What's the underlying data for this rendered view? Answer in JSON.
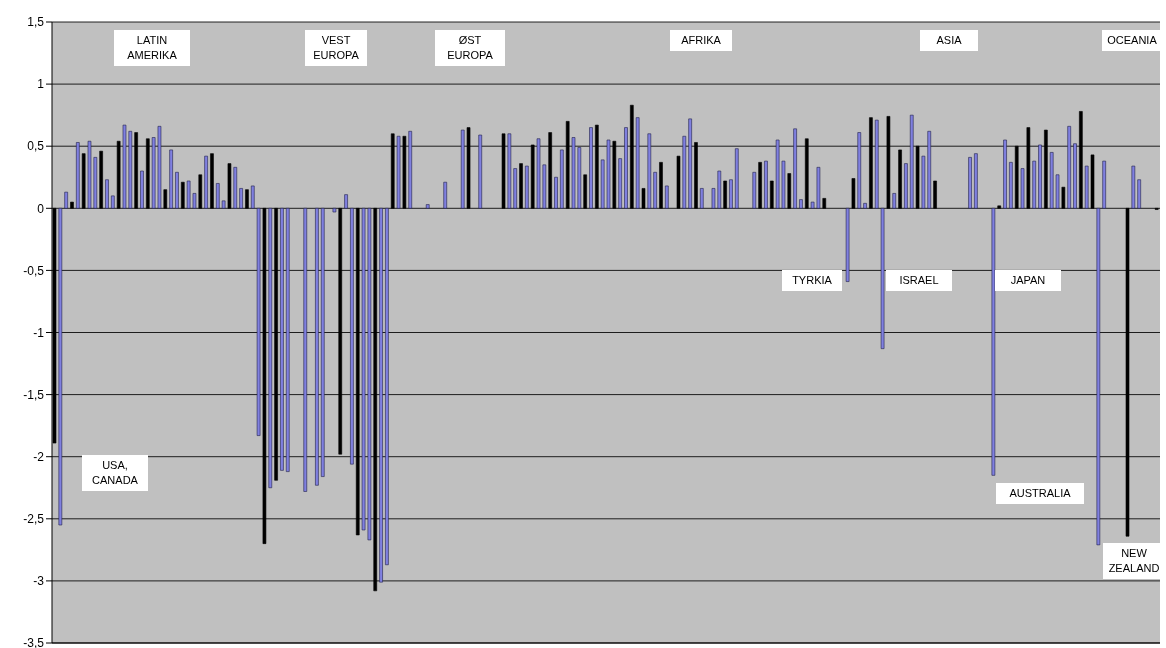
{
  "chart_data": {
    "type": "bar",
    "categories": [
      null,
      null,
      null,
      null,
      null,
      null,
      null,
      null,
      null,
      null,
      null,
      null,
      null,
      null,
      null,
      null,
      null,
      null,
      null,
      null,
      null,
      null,
      null,
      null,
      null,
      null,
      null,
      null,
      null,
      null,
      null,
      null,
      null,
      null,
      null,
      null,
      null,
      null,
      null,
      null,
      null,
      null,
      null,
      null,
      null,
      null,
      null,
      null,
      null,
      null,
      null,
      null,
      null,
      null,
      null,
      null,
      null,
      null,
      null,
      null,
      null,
      null,
      null,
      null,
      null,
      null,
      null,
      null,
      null,
      null,
      null,
      null,
      null,
      null,
      null,
      null,
      null,
      null,
      null,
      null,
      null,
      null,
      null,
      null,
      null,
      null,
      null,
      null,
      null,
      null,
      null,
      null,
      null,
      null,
      null,
      null,
      null,
      null,
      null,
      null,
      null,
      null,
      null,
      null,
      null,
      null,
      null,
      null,
      null,
      null,
      null,
      null,
      null,
      null,
      null,
      null,
      null,
      null,
      null,
      null,
      null,
      null,
      null,
      null,
      null,
      null,
      null,
      null,
      null,
      null,
      null,
      null,
      null,
      null,
      null,
      null,
      null,
      null,
      null,
      null,
      null,
      null,
      null,
      null,
      null,
      null,
      null,
      null,
      null,
      null,
      null,
      null,
      null,
      null,
      null,
      null,
      null,
      null,
      null,
      null,
      null,
      null,
      null,
      null,
      null,
      null,
      null,
      null,
      null,
      null,
      null,
      null,
      null,
      null,
      null,
      null,
      null,
      null,
      null,
      null,
      null,
      null,
      null,
      null,
      null,
      null,
      null,
      null,
      null,
      null
    ],
    "values": [
      -1.89,
      -2.55,
      0.13,
      0.05,
      0.53,
      0.44,
      0.54,
      0.41,
      0.46,
      0.23,
      0.1,
      0.54,
      0.67,
      0.62,
      0.61,
      0.3,
      0.56,
      0.57,
      0.66,
      0.15,
      0.47,
      0.29,
      0.21,
      0.22,
      0.12,
      0.27,
      0.42,
      0.44,
      0.2,
      0.06,
      0.36,
      0.33,
      0.16,
      0.15,
      0.18,
      -1.83,
      -2.7,
      -2.25,
      -2.19,
      -2.11,
      -2.12,
      null,
      null,
      -2.28,
      null,
      -2.23,
      -2.16,
      null,
      -0.03,
      -1.98,
      0.11,
      -2.06,
      -2.63,
      -2.59,
      -2.67,
      -3.08,
      -3.01,
      -2.87,
      0.6,
      0.58,
      0.58,
      0.62,
      null,
      null,
      0.03,
      null,
      null,
      0.21,
      null,
      null,
      0.63,
      0.65,
      null,
      0.59,
      null,
      null,
      null,
      0.6,
      0.6,
      0.32,
      0.36,
      0.34,
      0.51,
      0.56,
      0.35,
      0.61,
      0.25,
      0.47,
      0.7,
      0.57,
      0.49,
      0.27,
      0.65,
      0.67,
      0.39,
      0.55,
      0.54,
      0.4,
      0.65,
      0.83,
      0.73,
      0.16,
      0.6,
      0.29,
      0.37,
      0.18,
      null,
      0.42,
      0.58,
      0.72,
      0.53,
      0.16,
      null,
      0.16,
      0.3,
      0.22,
      0.23,
      0.48,
      null,
      null,
      0.29,
      0.37,
      0.38,
      0.22,
      0.55,
      0.38,
      0.28,
      0.64,
      0.07,
      0.56,
      0.05,
      0.33,
      0.08,
      null,
      null,
      null,
      -0.59,
      0.24,
      0.61,
      0.04,
      0.73,
      0.71,
      -1.13,
      0.74,
      0.12,
      0.47,
      0.36,
      0.75,
      0.5,
      0.42,
      0.62,
      0.22,
      null,
      null,
      null,
      null,
      null,
      0.41,
      0.44,
      null,
      null,
      -2.15,
      0.02,
      0.55,
      0.37,
      0.5,
      0.32,
      0.65,
      0.38,
      0.51,
      0.63,
      0.45,
      0.27,
      0.17,
      0.66,
      0.52,
      0.78,
      0.34,
      0.43,
      -2.71,
      0.38,
      null,
      null,
      null,
      -2.64,
      0.34,
      0.23,
      null,
      null,
      -0.01
    ],
    "colors": [
      "#000000",
      "#8080e0",
      "#8080e0",
      "#000000",
      "#8080e0",
      "#000000",
      "#8080e0",
      "#8080e0",
      "#000000",
      "#8080e0",
      "#8080e0",
      "#000000",
      "#8080e0",
      "#8080e0",
      "#000000",
      "#8080e0",
      "#000000",
      "#8080e0",
      "#8080e0",
      "#000000",
      "#8080e0",
      "#8080e0",
      "#000000",
      "#8080e0",
      "#8080e0",
      "#000000",
      "#8080e0",
      "#000000",
      "#8080e0",
      "#8080e0",
      "#000000",
      "#8080e0",
      "#8080e0",
      "#000000",
      "#8080e0",
      "#8080e0",
      "#000000",
      "#8080e0",
      "#000000",
      "#8080e0",
      "#8080e0",
      null,
      null,
      "#8080e0",
      null,
      "#8080e0",
      "#8080e0",
      null,
      "#8080e0",
      "#000000",
      "#8080e0",
      "#8080e0",
      "#000000",
      "#8080e0",
      "#8080e0",
      "#000000",
      "#8080e0",
      "#8080e0",
      "#000000",
      "#8080e0",
      "#000000",
      "#8080e0",
      null,
      null,
      "#8080e0",
      null,
      null,
      "#8080e0",
      null,
      null,
      "#8080e0",
      "#000000",
      null,
      "#8080e0",
      null,
      null,
      null,
      "#000000",
      "#8080e0",
      "#8080e0",
      "#000000",
      "#8080e0",
      "#000000",
      "#8080e0",
      "#8080e0",
      "#000000",
      "#8080e0",
      "#8080e0",
      "#000000",
      "#8080e0",
      "#8080e0",
      "#000000",
      "#8080e0",
      "#000000",
      "#8080e0",
      "#8080e0",
      "#000000",
      "#8080e0",
      "#8080e0",
      "#000000",
      "#8080e0",
      "#000000",
      "#8080e0",
      "#8080e0",
      "#000000",
      "#8080e0",
      null,
      "#000000",
      "#8080e0",
      "#8080e0",
      "#000000",
      "#8080e0",
      null,
      "#8080e0",
      "#8080e0",
      "#000000",
      "#8080e0",
      "#8080e0",
      null,
      null,
      "#8080e0",
      "#000000",
      "#8080e0",
      "#000000",
      "#8080e0",
      "#8080e0",
      "#000000",
      "#8080e0",
      "#8080e0",
      "#000000",
      "#8080e0",
      "#8080e0",
      "#000000",
      null,
      null,
      null,
      "#8080e0",
      "#000000",
      "#8080e0",
      "#8080e0",
      "#000000",
      "#8080e0",
      "#8080e0",
      "#000000",
      "#8080e0",
      "#000000",
      "#8080e0",
      "#8080e0",
      "#000000",
      "#8080e0",
      "#8080e0",
      "#000000",
      null,
      null,
      null,
      null,
      null,
      "#8080e0",
      "#8080e0",
      null,
      null,
      "#8080e0",
      "#000000",
      "#8080e0",
      "#8080e0",
      "#000000",
      "#8080e0",
      "#000000",
      "#8080e0",
      "#8080e0",
      "#000000",
      "#8080e0",
      "#8080e0",
      "#000000",
      "#8080e0",
      "#8080e0",
      "#000000",
      "#8080e0",
      "#000000",
      "#8080e0",
      "#8080e0",
      null,
      null,
      null,
      "#000000",
      "#8080e0",
      "#8080e0",
      null,
      null,
      "#000000"
    ],
    "ylim": [
      -3.5,
      1.5
    ],
    "yticks": [
      {
        "value": 1.5,
        "label": "1,5"
      },
      1,
      {
        "value": 0.5,
        "label": "0,5"
      },
      0,
      {
        "value": -0.5,
        "label": "-0,5"
      },
      -1,
      {
        "value": -1.5,
        "label": "-1,5"
      },
      -2,
      {
        "value": -2.5,
        "label": "-2,5"
      },
      -3,
      {
        "value": -3.5,
        "label": "-3,5"
      }
    ],
    "grid": "y",
    "tick_labels": "y",
    "annotations": [
      "LATIN AMERIKA",
      "VEST EUROPA",
      "ØST EUROPA",
      "AFRIKA",
      "ASIA",
      "OCEANIA",
      "USA, CANADA",
      "TYRKIA",
      "ISRAEL",
      "JAPAN",
      "AUSTRALIA",
      "NEW ZEALAND"
    ]
  }
}
